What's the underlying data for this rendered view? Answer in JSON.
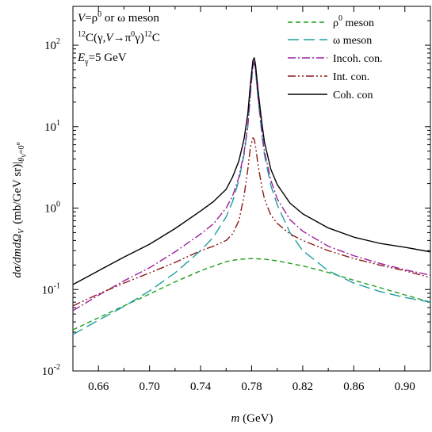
{
  "chart_data": {
    "type": "line",
    "xlabel": {
      "symbol": "m",
      "unit": "(GeV)"
    },
    "ylabel": {
      "num": "dσ/dmdΩ",
      "num_sub": "V",
      "unit": "(mb/GeV sr)|",
      "cond_sub": "θ",
      "cond_sub2": "V",
      "cond_rest": "=0",
      "cond_sup": "o"
    },
    "xlim": [
      0.64,
      0.92
    ],
    "ylim": [
      0.01,
      300
    ],
    "yscale": "log",
    "xticks": [
      {
        "v": 0.66,
        "label": "0.66"
      },
      {
        "v": 0.7,
        "label": "0.70"
      },
      {
        "v": 0.74,
        "label": "0.74"
      },
      {
        "v": 0.78,
        "label": "0.78"
      },
      {
        "v": 0.82,
        "label": "0.82"
      },
      {
        "v": 0.86,
        "label": "0.86"
      },
      {
        "v": 0.9,
        "label": "0.90"
      }
    ],
    "xminor": [
      0.64,
      0.68,
      0.72,
      0.76,
      0.8,
      0.84,
      0.88,
      0.92
    ],
    "yticks": [
      {
        "v": 0.01,
        "base": "10",
        "exp": "-2"
      },
      {
        "v": 0.1,
        "base": "10",
        "exp": "-1"
      },
      {
        "v": 1,
        "base": "10",
        "exp": "0"
      },
      {
        "v": 10,
        "base": "10",
        "exp": "1"
      },
      {
        "v": 100,
        "base": "10",
        "exp": "2"
      }
    ],
    "annotations": {
      "line1": {
        "a": "V",
        "b": "=ρ",
        "sup": "0",
        "c": " or ω meson"
      },
      "line2": {
        "sup1": "12",
        "a": "C(γ,",
        "b": "V",
        "c": "→π",
        "sup2": "0",
        "d": "γ)",
        "sup3": "12",
        "e": "C"
      },
      "line3": {
        "a": "E",
        "sub": "γ",
        "b": "=5 GeV"
      }
    },
    "legend": {
      "placement": "top-right"
    },
    "series": [
      {
        "key": "rho",
        "name": "ρ meson",
        "name_sup": "0",
        "name_main": "ρ",
        "name_rest": " meson",
        "color": "#1f9e1f",
        "dash": "6,4",
        "points": [
          [
            0.64,
            0.032
          ],
          [
            0.66,
            0.045
          ],
          [
            0.68,
            0.063
          ],
          [
            0.7,
            0.088
          ],
          [
            0.72,
            0.124
          ],
          [
            0.74,
            0.17
          ],
          [
            0.76,
            0.22
          ],
          [
            0.77,
            0.235
          ],
          [
            0.78,
            0.24
          ],
          [
            0.79,
            0.236
          ],
          [
            0.8,
            0.225
          ],
          [
            0.82,
            0.195
          ],
          [
            0.84,
            0.162
          ],
          [
            0.86,
            0.13
          ],
          [
            0.88,
            0.106
          ],
          [
            0.9,
            0.086
          ],
          [
            0.92,
            0.07
          ]
        ]
      },
      {
        "key": "omega",
        "name": "ω meson",
        "color": "#1f9e9e",
        "dash": "14,6",
        "points": [
          [
            0.64,
            0.028
          ],
          [
            0.66,
            0.042
          ],
          [
            0.68,
            0.062
          ],
          [
            0.7,
            0.096
          ],
          [
            0.72,
            0.16
          ],
          [
            0.74,
            0.3
          ],
          [
            0.75,
            0.44
          ],
          [
            0.76,
            0.78
          ],
          [
            0.765,
            1.2
          ],
          [
            0.77,
            2.2
          ],
          [
            0.774,
            4.5
          ],
          [
            0.777,
            10.0
          ],
          [
            0.779,
            25.0
          ],
          [
            0.781,
            55.0
          ],
          [
            0.782,
            62.0
          ],
          [
            0.783,
            50.0
          ],
          [
            0.785,
            22.0
          ],
          [
            0.788,
            8.0
          ],
          [
            0.79,
            4.5
          ],
          [
            0.795,
            1.9
          ],
          [
            0.8,
            1.1
          ],
          [
            0.81,
            0.5
          ],
          [
            0.82,
            0.3
          ],
          [
            0.84,
            0.17
          ],
          [
            0.86,
            0.12
          ],
          [
            0.88,
            0.095
          ],
          [
            0.9,
            0.08
          ],
          [
            0.92,
            0.07
          ]
        ]
      },
      {
        "key": "incoh",
        "name": "Incoh. con.",
        "color": "#9e1f9e",
        "dash": "10,3,2,3",
        "points": [
          [
            0.64,
            0.055
          ],
          [
            0.66,
            0.085
          ],
          [
            0.68,
            0.128
          ],
          [
            0.7,
            0.185
          ],
          [
            0.72,
            0.29
          ],
          [
            0.74,
            0.48
          ],
          [
            0.75,
            0.64
          ],
          [
            0.76,
            1.0
          ],
          [
            0.765,
            1.4
          ],
          [
            0.77,
            2.4
          ],
          [
            0.774,
            4.8
          ],
          [
            0.777,
            10.5
          ],
          [
            0.779,
            26.0
          ],
          [
            0.781,
            56.0
          ],
          [
            0.782,
            63.0
          ],
          [
            0.783,
            51.0
          ],
          [
            0.785,
            23.0
          ],
          [
            0.788,
            9.0
          ],
          [
            0.79,
            5.0
          ],
          [
            0.795,
            2.2
          ],
          [
            0.8,
            1.3
          ],
          [
            0.81,
            0.72
          ],
          [
            0.82,
            0.52
          ],
          [
            0.84,
            0.34
          ],
          [
            0.86,
            0.26
          ],
          [
            0.88,
            0.21
          ],
          [
            0.9,
            0.175
          ],
          [
            0.92,
            0.15
          ]
        ]
      },
      {
        "key": "intcon",
        "name": "Int. con.",
        "color": "#8b1a1a",
        "dash": "10,3,2,3,2,3",
        "points": [
          [
            0.64,
            0.063
          ],
          [
            0.66,
            0.088
          ],
          [
            0.68,
            0.12
          ],
          [
            0.7,
            0.16
          ],
          [
            0.72,
            0.215
          ],
          [
            0.74,
            0.3
          ],
          [
            0.75,
            0.34
          ],
          [
            0.76,
            0.4
          ],
          [
            0.765,
            0.48
          ],
          [
            0.77,
            0.7
          ],
          [
            0.774,
            1.4
          ],
          [
            0.777,
            3.0
          ],
          [
            0.779,
            5.6
          ],
          [
            0.781,
            7.3
          ],
          [
            0.782,
            7.0
          ],
          [
            0.783,
            5.8
          ],
          [
            0.785,
            3.4
          ],
          [
            0.788,
            1.8
          ],
          [
            0.79,
            1.3
          ],
          [
            0.795,
            0.82
          ],
          [
            0.8,
            0.65
          ],
          [
            0.81,
            0.48
          ],
          [
            0.82,
            0.4
          ],
          [
            0.84,
            0.3
          ],
          [
            0.86,
            0.24
          ],
          [
            0.88,
            0.2
          ],
          [
            0.9,
            0.17
          ],
          [
            0.92,
            0.14
          ]
        ]
      },
      {
        "key": "coh",
        "name": "Coh. con",
        "color": "#000000",
        "dash": "",
        "points": [
          [
            0.64,
            0.115
          ],
          [
            0.66,
            0.17
          ],
          [
            0.68,
            0.25
          ],
          [
            0.7,
            0.36
          ],
          [
            0.72,
            0.56
          ],
          [
            0.74,
            0.92
          ],
          [
            0.75,
            1.2
          ],
          [
            0.76,
            1.7
          ],
          [
            0.765,
            2.4
          ],
          [
            0.77,
            3.8
          ],
          [
            0.774,
            7.0
          ],
          [
            0.777,
            14.5
          ],
          [
            0.779,
            33.0
          ],
          [
            0.781,
            65.0
          ],
          [
            0.782,
            70.0
          ],
          [
            0.783,
            58.0
          ],
          [
            0.785,
            28.0
          ],
          [
            0.788,
            11.0
          ],
          [
            0.79,
            6.5
          ],
          [
            0.795,
            3.0
          ],
          [
            0.8,
            1.95
          ],
          [
            0.81,
            1.15
          ],
          [
            0.82,
            0.85
          ],
          [
            0.84,
            0.57
          ],
          [
            0.86,
            0.44
          ],
          [
            0.88,
            0.37
          ],
          [
            0.9,
            0.33
          ],
          [
            0.92,
            0.29
          ]
        ]
      }
    ]
  }
}
